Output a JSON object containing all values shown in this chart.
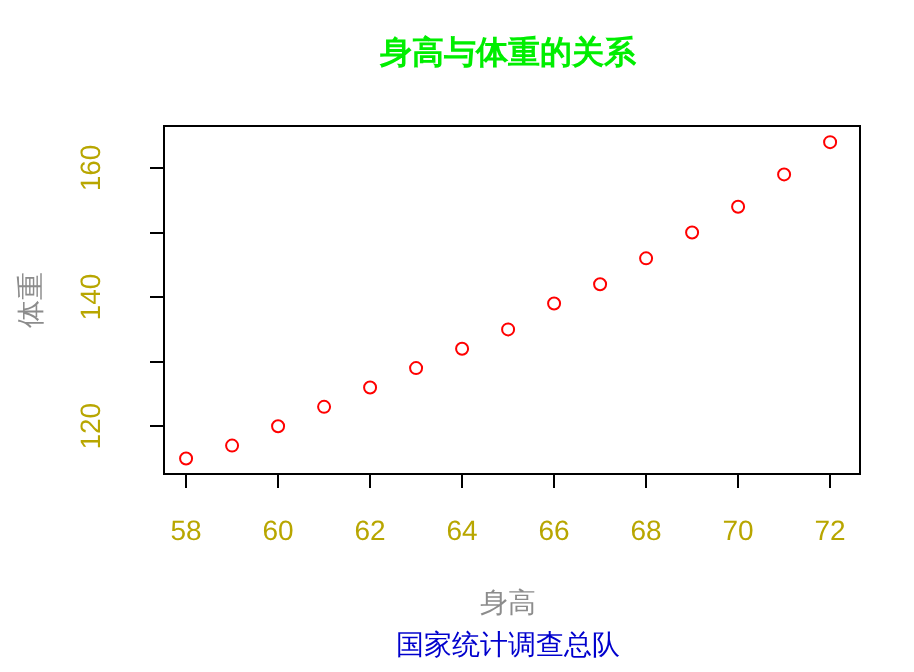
{
  "chart_data": {
    "type": "scatter",
    "title": "身高与体重的关系",
    "xlabel": "身高",
    "ylabel": "体重",
    "annotations": [
      "国家统计调查总队"
    ],
    "x": [
      58,
      59,
      60,
      61,
      62,
      63,
      64,
      65,
      66,
      67,
      68,
      69,
      70,
      71,
      72
    ],
    "series": [
      {
        "color": "#ff0000",
        "values": [
          115,
          117,
          120,
          123,
          126,
          129,
          132,
          135,
          139,
          142,
          146,
          150,
          154,
          159,
          164
        ]
      }
    ],
    "marker": "circle",
    "grid": false,
    "legend": false,
    "xlim": [
      57.52,
      72.65
    ],
    "ylim": [
      112.6,
      166.5
    ],
    "xticks": [
      58,
      60,
      62,
      64,
      66,
      68,
      70,
      72
    ],
    "yticks": [
      120,
      {
        "value": 130,
        "label": null
      },
      140,
      {
        "value": 150,
        "label": null
      },
      160
    ]
  }
}
